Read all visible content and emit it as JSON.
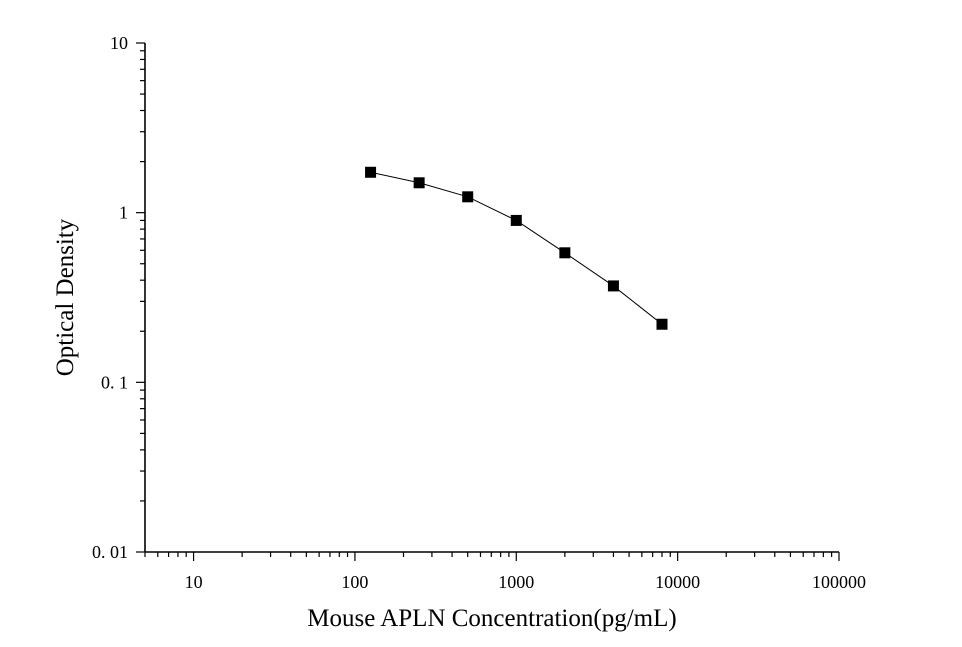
{
  "chart_data": {
    "type": "line",
    "title": "",
    "xlabel": "Mouse APLN Concentration(pg/mL)",
    "ylabel": "Optical Density",
    "x_scale": "log",
    "y_scale": "log",
    "xlim": [
      5,
      100000
    ],
    "ylim": [
      0.01,
      10
    ],
    "x_ticks": [
      {
        "value": 10,
        "label": "10"
      },
      {
        "value": 100,
        "label": "100"
      },
      {
        "value": 1000,
        "label": "1000"
      },
      {
        "value": 10000,
        "label": "10000"
      },
      {
        "value": 100000,
        "label": "100000"
      }
    ],
    "y_ticks": [
      {
        "value": 10,
        "label": "10"
      },
      {
        "value": 1,
        "label": "1"
      },
      {
        "value": 0.1,
        "label": "0. 1"
      },
      {
        "value": 0.01,
        "label": "0. 01"
      }
    ],
    "grid": false,
    "legend": "none",
    "series": [
      {
        "marker": "square",
        "color": "#000000",
        "x": [
          125,
          250,
          500,
          1000,
          2000,
          4000,
          8000
        ],
        "y": [
          1.73,
          1.5,
          1.24,
          0.9,
          0.58,
          0.37,
          0.22
        ]
      }
    ]
  }
}
